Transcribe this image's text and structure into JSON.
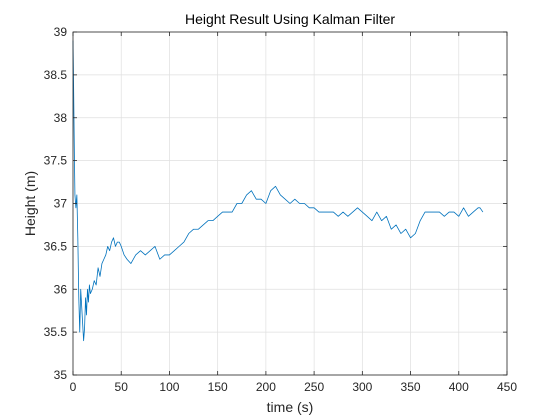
{
  "chart_data": {
    "type": "line",
    "title": "Height Result Using Kalman Filter",
    "xlabel": "time (s)",
    "ylabel": "Height (m)",
    "xlim": [
      0,
      450
    ],
    "ylim": [
      35,
      39
    ],
    "xticks": [
      0,
      50,
      100,
      150,
      200,
      250,
      300,
      350,
      400,
      450
    ],
    "xtick_labels": [
      "0",
      "50",
      "100",
      "150",
      "200",
      "250",
      "300",
      "350",
      "400",
      "450"
    ],
    "yticks": [
      35,
      35.5,
      36,
      36.5,
      37,
      37.5,
      38,
      38.5,
      39
    ],
    "ytick_labels": [
      "35",
      "35.5",
      "36",
      "36.5",
      "37",
      "37.5",
      "38",
      "38.5",
      "39"
    ],
    "grid": true,
    "line_color": "#0072BD",
    "series": [
      {
        "x": [
          0,
          0.5,
          1,
          1.5,
          2,
          3,
          4,
          5,
          6,
          7,
          8,
          9,
          10,
          11,
          12,
          13,
          14,
          15,
          16,
          17,
          18,
          20,
          22,
          24,
          26,
          28,
          30,
          32,
          34,
          36,
          38,
          40,
          42,
          44,
          46,
          48,
          50,
          53,
          56,
          60,
          65,
          70,
          75,
          80,
          85,
          90,
          95,
          100,
          105,
          110,
          115,
          120,
          125,
          130,
          135,
          140,
          145,
          150,
          155,
          160,
          165,
          170,
          175,
          180,
          185,
          190,
          195,
          200,
          205,
          210,
          215,
          220,
          225,
          230,
          235,
          240,
          245,
          250,
          255,
          260,
          265,
          270,
          275,
          280,
          285,
          290,
          295,
          300,
          305,
          310,
          315,
          320,
          325,
          330,
          335,
          340,
          345,
          350,
          355,
          360,
          365,
          370,
          375,
          380,
          385,
          390,
          395,
          400,
          405,
          410,
          415,
          420,
          422,
          425
        ],
        "y": [
          38.9,
          38.5,
          38.0,
          37.5,
          37.1,
          36.95,
          37.1,
          36.6,
          35.9,
          35.5,
          36.0,
          35.8,
          35.6,
          35.4,
          35.55,
          35.9,
          35.7,
          36.0,
          35.85,
          36.05,
          35.95,
          36.0,
          36.1,
          36.05,
          36.25,
          36.15,
          36.3,
          36.35,
          36.4,
          36.5,
          36.45,
          36.55,
          36.6,
          36.5,
          36.55,
          36.55,
          36.5,
          36.4,
          36.35,
          36.3,
          36.4,
          36.45,
          36.4,
          36.45,
          36.5,
          36.35,
          36.4,
          36.4,
          36.45,
          36.5,
          36.55,
          36.65,
          36.7,
          36.7,
          36.75,
          36.8,
          36.8,
          36.85,
          36.9,
          36.9,
          36.9,
          37.0,
          37.0,
          37.1,
          37.15,
          37.05,
          37.05,
          37.0,
          37.15,
          37.2,
          37.1,
          37.05,
          37.0,
          37.05,
          37.0,
          37.0,
          36.95,
          36.95,
          36.9,
          36.9,
          36.9,
          36.9,
          36.85,
          36.9,
          36.85,
          36.9,
          36.95,
          36.9,
          36.85,
          36.8,
          36.9,
          36.8,
          36.85,
          36.7,
          36.75,
          36.65,
          36.7,
          36.6,
          36.65,
          36.8,
          36.9,
          36.9,
          36.9,
          36.9,
          36.85,
          36.9,
          36.9,
          36.85,
          36.95,
          36.85,
          36.9,
          36.95,
          36.95,
          36.9
        ]
      }
    ]
  }
}
